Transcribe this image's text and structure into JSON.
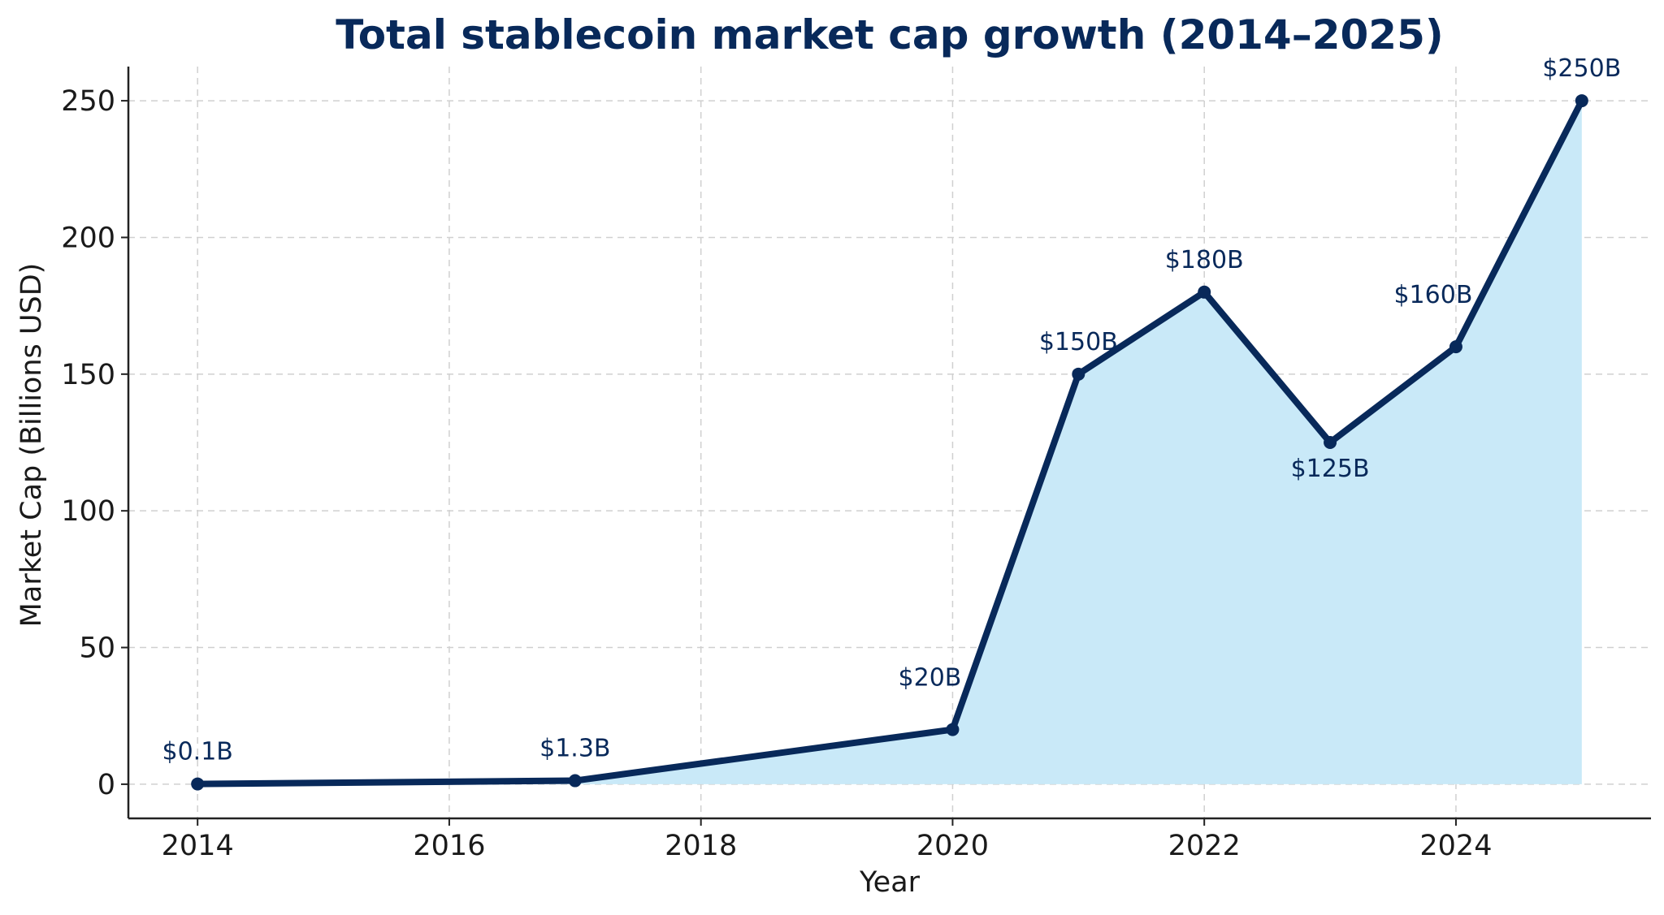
{
  "colors": {
    "line": "#08295a",
    "fill": "#c9e9f8",
    "title": "#08295a",
    "label": "#08295a"
  },
  "chart_data": {
    "type": "area",
    "title": "Total stablecoin market cap growth (2014–2025)",
    "xlabel": "Year",
    "ylabel": "Market Cap (Billions USD)",
    "xlim": [
      2013.45,
      2025.55
    ],
    "ylim": [
      -12.5,
      262.5
    ],
    "grid": true,
    "x_ticks": [
      2014,
      2016,
      2018,
      2020,
      2022,
      2024
    ],
    "y_ticks": [
      0,
      50,
      100,
      150,
      200,
      250
    ],
    "series": [
      {
        "name": "Market Cap",
        "x": [
          2014,
          2017,
          2020,
          2021,
          2022,
          2023,
          2024,
          2025
        ],
        "values": [
          0.1,
          1.3,
          20,
          150,
          180,
          125,
          160,
          250
        ],
        "labels": [
          "$0.1B",
          "$1.3B",
          "$20B",
          "$150B",
          "$180B",
          "$125B",
          "$160B",
          "$250B"
        ],
        "label_pos": [
          "above",
          "above",
          "above-left",
          "above",
          "above",
          "below",
          "above-left",
          "above"
        ]
      }
    ]
  }
}
